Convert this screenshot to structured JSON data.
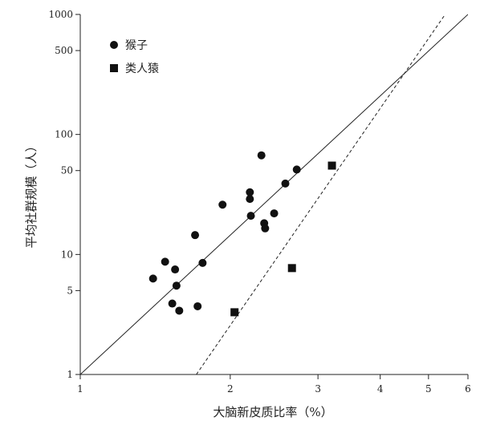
{
  "chart_data": {
    "type": "scatter",
    "xscale": "log",
    "yscale": "log",
    "xlabel": "大脑新皮质比率（%）",
    "ylabel": "平均社群规模（人）",
    "xlim": [
      1,
      6
    ],
    "ylim": [
      1,
      1000
    ],
    "xticks": [
      1,
      2,
      3,
      4,
      5,
      6
    ],
    "yticks": [
      1,
      5,
      10,
      50,
      100,
      500,
      1000
    ],
    "legend_position": "top-left",
    "series": [
      {
        "name": "猴子",
        "marker": "circle",
        "points": [
          {
            "x": 1.4,
            "y": 6.3
          },
          {
            "x": 1.48,
            "y": 8.7
          },
          {
            "x": 1.55,
            "y": 7.5
          },
          {
            "x": 1.56,
            "y": 5.5
          },
          {
            "x": 1.53,
            "y": 3.9
          },
          {
            "x": 1.58,
            "y": 3.4
          },
          {
            "x": 1.7,
            "y": 14.5
          },
          {
            "x": 1.72,
            "y": 3.7
          },
          {
            "x": 1.76,
            "y": 8.5
          },
          {
            "x": 1.93,
            "y": 26
          },
          {
            "x": 2.19,
            "y": 33
          },
          {
            "x": 2.19,
            "y": 29
          },
          {
            "x": 2.2,
            "y": 21
          },
          {
            "x": 2.31,
            "y": 67
          },
          {
            "x": 2.34,
            "y": 18.2
          },
          {
            "x": 2.35,
            "y": 16.5
          },
          {
            "x": 2.45,
            "y": 22
          },
          {
            "x": 2.58,
            "y": 39
          },
          {
            "x": 2.72,
            "y": 51
          }
        ]
      },
      {
        "name": "类人猿",
        "marker": "square",
        "points": [
          {
            "x": 2.04,
            "y": 3.3
          },
          {
            "x": 2.66,
            "y": 7.7
          },
          {
            "x": 3.2,
            "y": 55
          }
        ]
      }
    ],
    "lines": [
      {
        "style": "solid",
        "from": [
          1,
          1
        ],
        "to": [
          6,
          1000
        ]
      },
      {
        "style": "dashed",
        "from": [
          1.71,
          1
        ],
        "to": [
          5.4,
          1000
        ]
      }
    ]
  }
}
